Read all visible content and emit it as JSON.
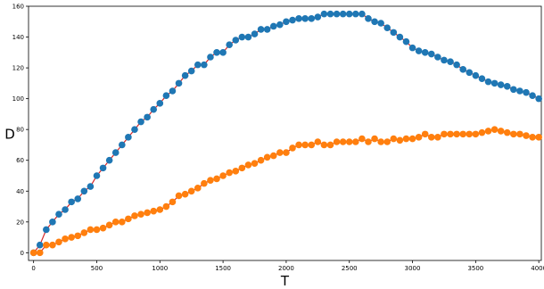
{
  "chart_data": {
    "type": "line",
    "xlabel": "T",
    "ylabel": "D",
    "xlim": [
      -40,
      4020
    ],
    "ylim": [
      -5,
      160
    ],
    "x_ticks": [
      0,
      500,
      1000,
      1500,
      2000,
      2500,
      3000,
      3500,
      4000
    ],
    "y_ticks": [
      0,
      20,
      40,
      60,
      80,
      100,
      120,
      140,
      160
    ],
    "grid": false,
    "x": [
      0,
      50,
      100,
      150,
      200,
      250,
      300,
      350,
      400,
      450,
      500,
      550,
      600,
      650,
      700,
      750,
      800,
      850,
      900,
      950,
      1000,
      1050,
      1100,
      1150,
      1200,
      1250,
      1300,
      1350,
      1400,
      1450,
      1500,
      1550,
      1600,
      1650,
      1700,
      1750,
      1800,
      1850,
      1900,
      1950,
      2000,
      2050,
      2100,
      2150,
      2200,
      2250,
      2300,
      2350,
      2400,
      2450,
      2500,
      2550,
      2600,
      2650,
      2700,
      2750,
      2800,
      2850,
      2900,
      2950,
      3000,
      3050,
      3100,
      3150,
      3200,
      3250,
      3300,
      3350,
      3400,
      3450,
      3500,
      3550,
      3600,
      3650,
      3700,
      3750,
      3800,
      3850,
      3900,
      3950,
      4000
    ],
    "series": [
      {
        "color": "#1f77b4",
        "line_color": "#d62728",
        "values": [
          0,
          5,
          15,
          20,
          25,
          28,
          33,
          35,
          40,
          43,
          50,
          55,
          60,
          65,
          70,
          75,
          80,
          85,
          88,
          93,
          97,
          102,
          105,
          110,
          115,
          118,
          122,
          122,
          127,
          130,
          130,
          135,
          138,
          140,
          140,
          142,
          145,
          145,
          147,
          148,
          150,
          151,
          152,
          152,
          152,
          153,
          155,
          155,
          155,
          155,
          155,
          155,
          155,
          152,
          150,
          149,
          146,
          143,
          140,
          137,
          133,
          131,
          130,
          129,
          127,
          125,
          124,
          122,
          119,
          117,
          115,
          113,
          111,
          110,
          109,
          108,
          106,
          105,
          104,
          102,
          100
        ]
      },
      {
        "color": "#ff7f0e",
        "line_color": "#d62728",
        "values": [
          0,
          0,
          5,
          5,
          7,
          9,
          10,
          11,
          13,
          15,
          15,
          16,
          18,
          20,
          20,
          22,
          24,
          25,
          26,
          27,
          28,
          30,
          33,
          37,
          38,
          40,
          42,
          45,
          47,
          48,
          50,
          52,
          53,
          55,
          57,
          58,
          60,
          62,
          63,
          65,
          65,
          68,
          70,
          70,
          70,
          72,
          70,
          70,
          72,
          72,
          72,
          72,
          74,
          72,
          74,
          72,
          72,
          74,
          73,
          74,
          74,
          75,
          77,
          75,
          75,
          77,
          77,
          77,
          77,
          77,
          77,
          78,
          79,
          80,
          79,
          78,
          77,
          77,
          76,
          75,
          75
        ]
      }
    ]
  }
}
